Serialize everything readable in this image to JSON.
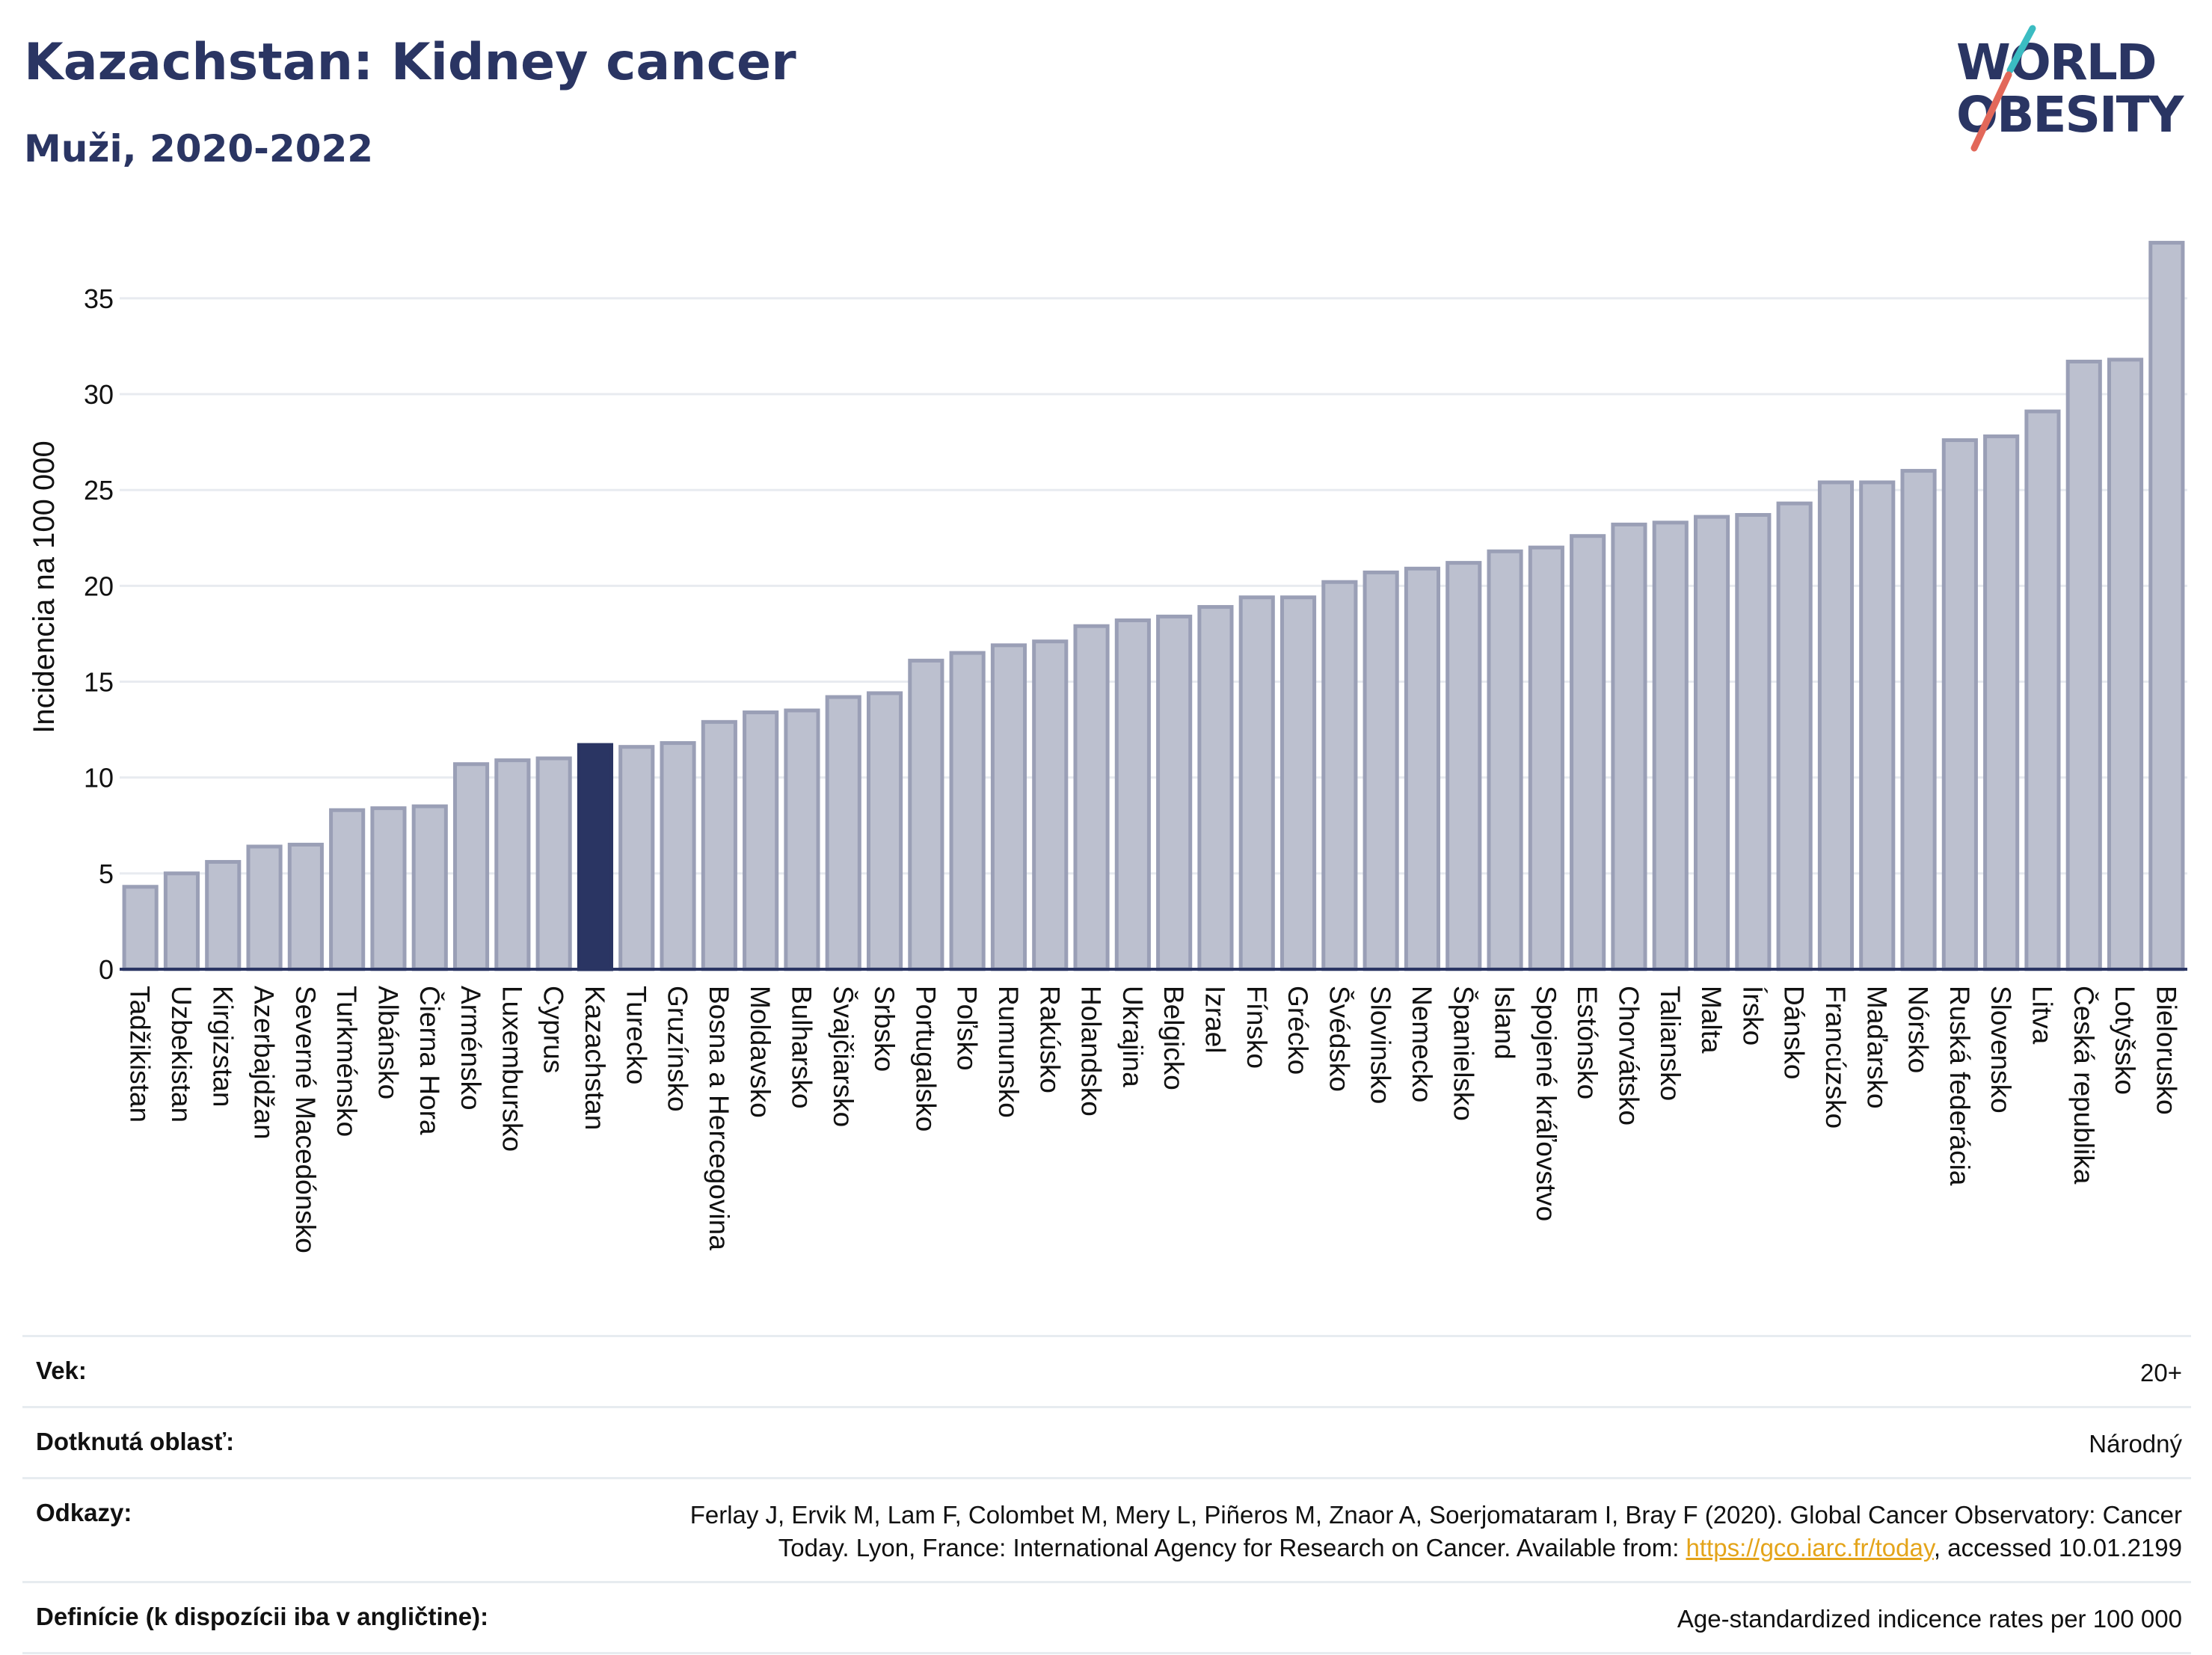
{
  "header": {
    "title": "Kazachstan: Kidney cancer",
    "subtitle": "Muži, 2020-2022"
  },
  "logo": {
    "line1": "WORLD",
    "line2": "OBESITY"
  },
  "colors": {
    "bar": "#bcc0cf",
    "bar_stroke": "#9a9fb6",
    "highlight": "#2a3563",
    "grid": "#e8ebf0",
    "axis": "#2a3563",
    "logo_teal": "#3bbcc2",
    "logo_red": "#e2685a"
  },
  "chart_data": {
    "type": "bar",
    "ylabel": "Incidencia na 100 000",
    "ylim": [
      0,
      38
    ],
    "yticks": [
      0,
      5,
      10,
      15,
      20,
      25,
      30,
      35
    ],
    "grid": true,
    "highlight": "Kazachstan",
    "categories": [
      "Tadžikistan",
      "Uzbekistan",
      "Kirgizstan",
      "Azerbajdžan",
      "Severné Macedónsko",
      "Turkménsko",
      "Albánsko",
      "Čierna Hora",
      "Arménsko",
      "Luxembursko",
      "Cyprus",
      "Kazachstan",
      "Turecko",
      "Gruzínsko",
      "Bosna a Hercegovina",
      "Moldavsko",
      "Bulharsko",
      "Švajčiarsko",
      "Srbsko",
      "Portugalsko",
      "Poľsko",
      "Rumunsko",
      "Rakúsko",
      "Holandsko",
      "Ukrajina",
      "Belgicko",
      "Izrael",
      "Fínsko",
      "Grécko",
      "Švédsko",
      "Slovinsko",
      "Nemecko",
      "Španielsko",
      "Island",
      "Spojené kráľovstvo",
      "Estónsko",
      "Chorvátsko",
      "Taliansko",
      "Malta",
      "Írsko",
      "Dánsko",
      "Francúzsko",
      "Maďarsko",
      "Nórsko",
      "Ruská federácia",
      "Slovensko",
      "Litva",
      "Česká republika",
      "Lotyšsko",
      "Bielorusko"
    ],
    "values": [
      4.3,
      5.0,
      5.6,
      6.4,
      6.5,
      8.3,
      8.4,
      8.5,
      10.7,
      10.9,
      11.0,
      11.7,
      11.6,
      11.8,
      12.9,
      13.4,
      13.5,
      14.2,
      14.4,
      16.1,
      16.5,
      16.9,
      17.1,
      17.9,
      18.2,
      18.4,
      18.9,
      19.4,
      19.4,
      20.2,
      20.7,
      20.9,
      21.2,
      21.8,
      22.0,
      22.6,
      23.2,
      23.3,
      23.6,
      23.7,
      24.3,
      25.4,
      25.4,
      26.0,
      27.6,
      27.8,
      29.1,
      31.7,
      31.8,
      37.9
    ]
  },
  "footer": {
    "rows": [
      {
        "label": "Vek:",
        "value": "20+"
      },
      {
        "label": "Dotknutá oblasť:",
        "value": "Národný"
      },
      {
        "label": "Odkazy:",
        "value_line1": "Ferlay J, Ervik M, Lam F, Colombet M, Mery L, Piñeros M, Znaor A, Soerjomataram I, Bray F (2020). Global Cancer Observatory: Cancer",
        "value_line2_pre": "Today. Lyon, France: International Agency for Research on Cancer. Available from: ",
        "link": "https://gco.iarc.fr/today",
        "value_line2_post": ", accessed 10.01.2199"
      },
      {
        "label": "Definície (k dispozícii iba v angličtine):",
        "value": "Age-standardized indicence rates per 100 000"
      }
    ]
  }
}
